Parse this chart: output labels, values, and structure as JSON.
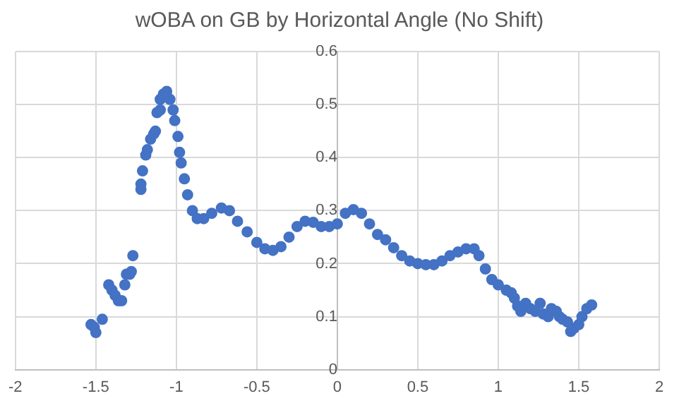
{
  "chart_data": {
    "type": "scatter",
    "title": "wOBA on GB by Horizontal Angle (No Shift)",
    "series": [
      {
        "color": "#4472c4",
        "x": [
          -1.53,
          -1.51,
          -1.5,
          -1.46,
          -1.42,
          -1.4,
          -1.38,
          -1.36,
          -1.34,
          -1.32,
          -1.31,
          -1.29,
          -1.28,
          -1.27,
          -1.22,
          -1.22,
          -1.21,
          -1.19,
          -1.18,
          -1.16,
          -1.14,
          -1.13,
          -1.12,
          -1.1,
          -1.1,
          -1.08,
          -1.06,
          -1.04,
          -1.02,
          -1.01,
          -0.99,
          -0.98,
          -0.97,
          -0.95,
          -0.93,
          -0.9,
          -0.87,
          -0.83,
          -0.78,
          -0.72,
          -0.67,
          -0.62,
          -0.56,
          -0.5,
          -0.45,
          -0.4,
          -0.35,
          -0.3,
          -0.25,
          -0.2,
          -0.15,
          -0.1,
          -0.05,
          0,
          0.05,
          0.1,
          0.15,
          0.2,
          0.25,
          0.3,
          0.35,
          0.4,
          0.45,
          0.5,
          0.55,
          0.6,
          0.65,
          0.7,
          0.75,
          0.8,
          0.85,
          0.88,
          0.92,
          0.96,
          1,
          1.05,
          1.08,
          1.1,
          1.12,
          1.14,
          1.17,
          1.2,
          1.23,
          1.26,
          1.28,
          1.31,
          1.33,
          1.36,
          1.38,
          1.4,
          1.43,
          1.45,
          1.47,
          1.5,
          1.52,
          1.55,
          1.58
        ],
        "values": [
          0.085,
          0.08,
          0.07,
          0.095,
          0.16,
          0.15,
          0.14,
          0.13,
          0.13,
          0.16,
          0.18,
          0.18,
          0.185,
          0.215,
          0.34,
          0.35,
          0.375,
          0.405,
          0.415,
          0.435,
          0.445,
          0.45,
          0.485,
          0.49,
          0.51,
          0.52,
          0.525,
          0.51,
          0.49,
          0.47,
          0.44,
          0.41,
          0.39,
          0.36,
          0.33,
          0.3,
          0.285,
          0.285,
          0.295,
          0.305,
          0.3,
          0.28,
          0.26,
          0.24,
          0.228,
          0.225,
          0.232,
          0.25,
          0.27,
          0.28,
          0.278,
          0.27,
          0.27,
          0.275,
          0.295,
          0.302,
          0.295,
          0.275,
          0.255,
          0.245,
          0.23,
          0.215,
          0.205,
          0.2,
          0.198,
          0.198,
          0.205,
          0.215,
          0.222,
          0.228,
          0.228,
          0.215,
          0.19,
          0.17,
          0.16,
          0.15,
          0.145,
          0.135,
          0.12,
          0.11,
          0.125,
          0.115,
          0.11,
          0.125,
          0.105,
          0.1,
          0.115,
          0.11,
          0.1,
          0.095,
          0.09,
          0.072,
          0.078,
          0.085,
          0.1,
          0.115,
          0.122
        ]
      }
    ],
    "xlim": [
      -2,
      2
    ],
    "xticks": [
      -2,
      -1.5,
      -1,
      -0.5,
      0,
      0.5,
      1,
      1.5,
      2
    ],
    "ylim": [
      0,
      0.6
    ],
    "yticks": [
      0,
      0.1,
      0.2,
      0.3,
      0.4,
      0.5,
      0.6
    ],
    "grid": true,
    "legend": false,
    "marker": "circle"
  }
}
